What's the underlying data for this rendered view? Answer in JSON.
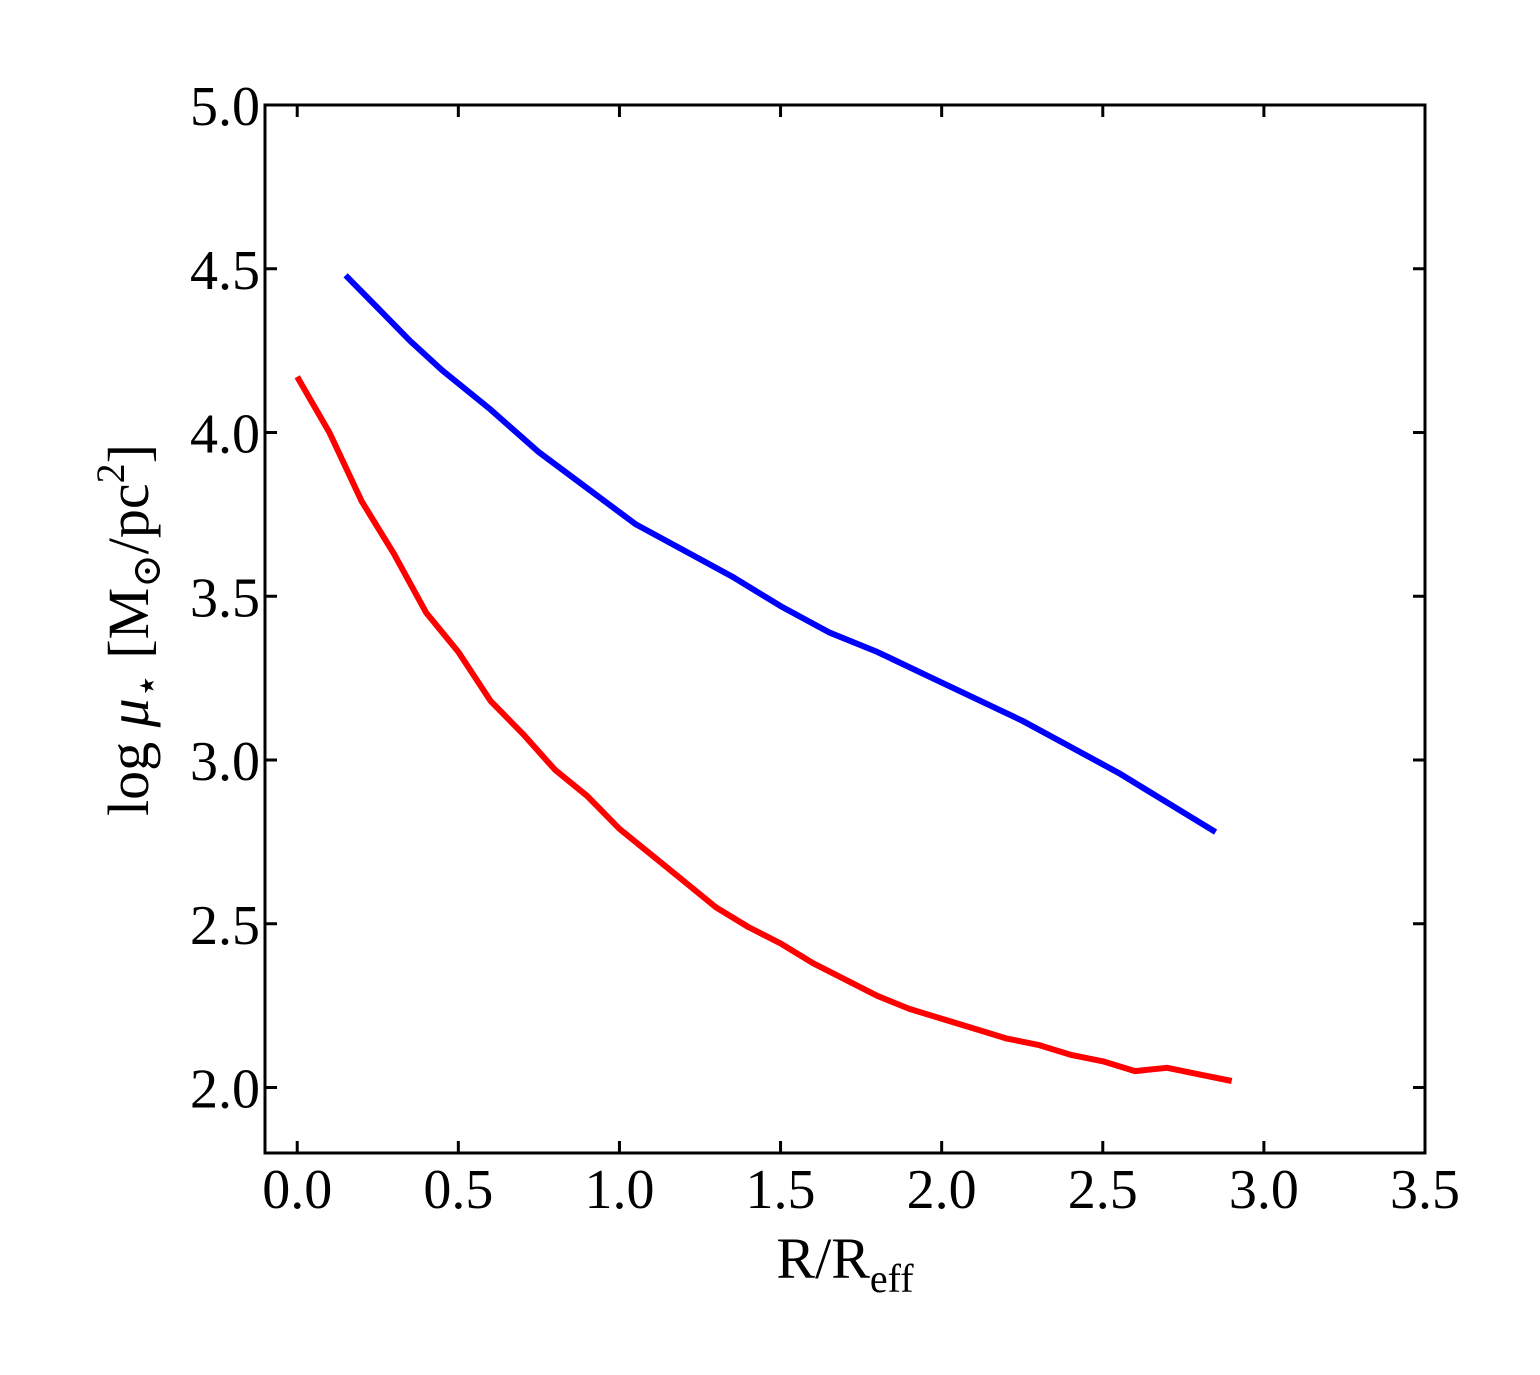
{
  "chart_data": {
    "type": "line",
    "xlabel": {
      "main": "R/R",
      "subscript": "eff"
    },
    "ylabel": {
      "prefix": "log ",
      "mu": "μ",
      "star": "⋆",
      "open": " [M",
      "sun": "⊙",
      "unit": "/pc",
      "sup": "2",
      "close": "]"
    },
    "xlim": [
      -0.1,
      3.5
    ],
    "ylim": [
      1.8,
      5.0
    ],
    "xticks": [
      0.0,
      0.5,
      1.0,
      1.5,
      2.0,
      2.5,
      3.0,
      3.5
    ],
    "xtick_labels": [
      "0.0",
      "0.5",
      "1.0",
      "1.5",
      "2.0",
      "2.5",
      "3.0",
      "3.5"
    ],
    "yticks": [
      2.0,
      2.5,
      3.0,
      3.5,
      4.0,
      4.5,
      5.0
    ],
    "ytick_labels": [
      "2.0",
      "2.5",
      "3.0",
      "3.5",
      "4.0",
      "4.5",
      "5.0"
    ],
    "grid": false,
    "series": [
      {
        "color": "#0000ff",
        "x": [
          0.15,
          0.25,
          0.35,
          0.45,
          0.6,
          0.75,
          0.9,
          1.05,
          1.2,
          1.35,
          1.5,
          1.65,
          1.8,
          1.95,
          2.1,
          2.25,
          2.4,
          2.55,
          2.7,
          2.85
        ],
        "y": [
          4.48,
          4.38,
          4.28,
          4.19,
          4.07,
          3.94,
          3.83,
          3.72,
          3.64,
          3.56,
          3.47,
          3.39,
          3.33,
          3.26,
          3.19,
          3.12,
          3.04,
          2.96,
          2.87,
          2.78
        ]
      },
      {
        "color": "#ff0000",
        "x": [
          0.0,
          0.1,
          0.2,
          0.3,
          0.4,
          0.5,
          0.6,
          0.7,
          0.8,
          0.9,
          1.0,
          1.1,
          1.2,
          1.3,
          1.4,
          1.5,
          1.6,
          1.7,
          1.8,
          1.9,
          2.0,
          2.1,
          2.2,
          2.3,
          2.4,
          2.5,
          2.6,
          2.7,
          2.8,
          2.9
        ],
        "y": [
          4.17,
          4.0,
          3.79,
          3.63,
          3.45,
          3.33,
          3.18,
          3.08,
          2.97,
          2.89,
          2.79,
          2.71,
          2.63,
          2.55,
          2.49,
          2.44,
          2.38,
          2.33,
          2.28,
          2.24,
          2.21,
          2.18,
          2.15,
          2.13,
          2.1,
          2.08,
          2.05,
          2.06,
          2.04,
          2.02
        ]
      }
    ]
  }
}
